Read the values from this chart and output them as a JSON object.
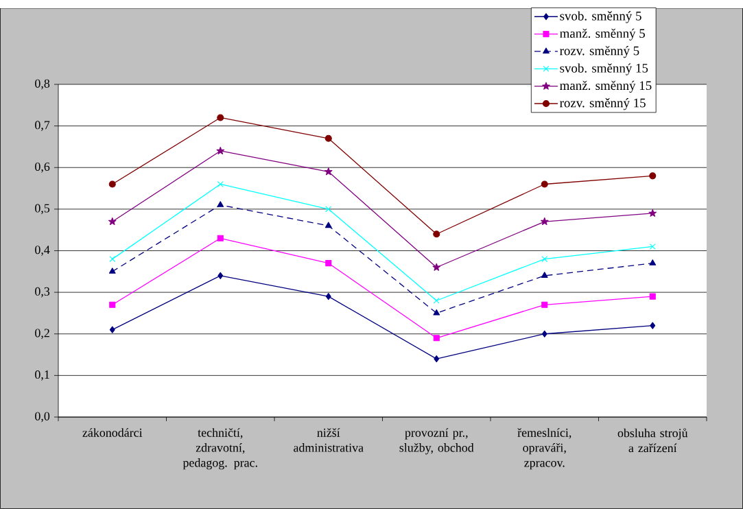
{
  "chart_data": {
    "type": "line",
    "categories": [
      "zákonodárci",
      "techničtí, zdravotní, pedagog. prac.",
      "nižší administrativa",
      "provozní pr., služby, obchod",
      "řemeslníci, opraváři, zpracov.",
      "obsluha strojů a zařízení"
    ],
    "series": [
      {
        "name": "svob. směnný 5",
        "color": "#000080",
        "marker": "diamond",
        "line_style": "solid",
        "values": [
          0.21,
          0.34,
          0.29,
          0.14,
          0.2,
          0.22
        ]
      },
      {
        "name": "manž. směnný 5",
        "color": "#ff00ff",
        "marker": "square",
        "line_style": "solid",
        "values": [
          0.27,
          0.43,
          0.37,
          0.19,
          0.27,
          0.29
        ]
      },
      {
        "name": "rozv. směnný 5",
        "color": "#000080",
        "marker": "triangle",
        "line_style": "dashed",
        "values": [
          0.35,
          0.51,
          0.46,
          0.25,
          0.34,
          0.37
        ]
      },
      {
        "name": "svob. směnný 15",
        "color": "#00ffff",
        "marker": "cross",
        "line_style": "solid",
        "values": [
          0.38,
          0.56,
          0.5,
          0.28,
          0.38,
          0.41
        ]
      },
      {
        "name": "manž. směnný 15",
        "color": "#800080",
        "marker": "star",
        "line_style": "solid",
        "values": [
          0.47,
          0.64,
          0.59,
          0.36,
          0.47,
          0.49
        ]
      },
      {
        "name": "rozv. směnný 15",
        "color": "#800000",
        "marker": "circle",
        "line_style": "solid",
        "values": [
          0.56,
          0.72,
          0.67,
          0.44,
          0.56,
          0.58
        ]
      }
    ],
    "ylim": [
      0,
      0.8
    ],
    "yticks": [
      {
        "value": 0,
        "label": "0,0"
      },
      {
        "value": 0.1,
        "label": "0,1"
      },
      {
        "value": 0.2,
        "label": "0,2"
      },
      {
        "value": 0.3,
        "label": "0,3"
      },
      {
        "value": 0.4,
        "label": "0,4"
      },
      {
        "value": 0.5,
        "label": "0,5"
      },
      {
        "value": 0.6,
        "label": "0,6"
      },
      {
        "value": 0.7,
        "label": "0,7"
      },
      {
        "value": 0.8,
        "label": "0,8"
      }
    ],
    "grid": "y",
    "legend": "top right"
  }
}
